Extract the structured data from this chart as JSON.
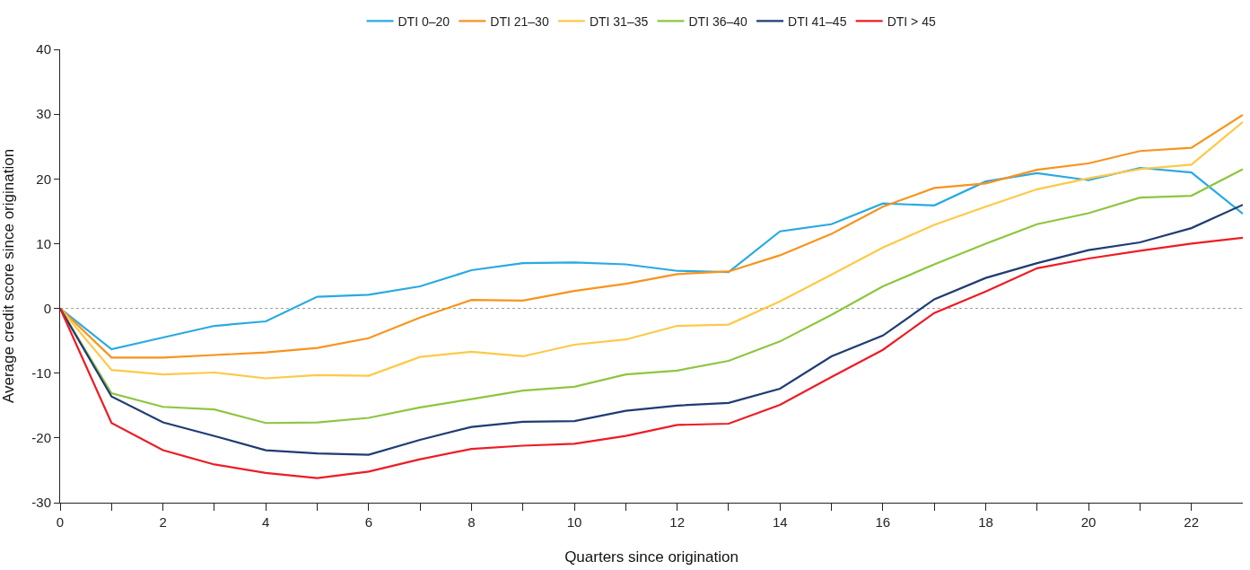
{
  "chart_data": {
    "type": "line",
    "xlabel": "Quarters since origination",
    "ylabel": "Average credit score since origination",
    "x": [
      0,
      1,
      2,
      3,
      4,
      5,
      6,
      7,
      8,
      9,
      10,
      11,
      12,
      13,
      14,
      15,
      16,
      17,
      18,
      19,
      20,
      21,
      22,
      23
    ],
    "series": [
      {
        "name": "DTI 0–20",
        "color": "#29aae1",
        "values": [
          0,
          -6.3,
          -4.5,
          -2.7,
          -2,
          1.8,
          2.1,
          3.4,
          5.9,
          7,
          7.1,
          6.8,
          5.8,
          5.6,
          11.9,
          13,
          16.2,
          15.9,
          19.6,
          20.9,
          19.8,
          21.7,
          21,
          14.6
        ]
      },
      {
        "name": "DTI 21–30",
        "color": "#f7941d",
        "values": [
          0,
          -7.6,
          -7.6,
          -7.2,
          -6.8,
          -6.1,
          -4.6,
          -1.4,
          1.3,
          1.2,
          2.7,
          3.8,
          5.3,
          5.7,
          8.2,
          11.5,
          15.7,
          18.6,
          19.3,
          21.4,
          22.4,
          24.3,
          24.8,
          29.9
        ]
      },
      {
        "name": "DTI 31–35",
        "color": "#fdc948",
        "values": [
          0,
          -9.5,
          -10.2,
          -9.9,
          -10.8,
          -10.3,
          -10.4,
          -7.5,
          -6.7,
          -7.4,
          -5.6,
          -4.8,
          -2.7,
          -2.5,
          1.1,
          5.2,
          9.4,
          12.9,
          15.7,
          18.4,
          20.1,
          21.5,
          22.2,
          28.8
        ]
      },
      {
        "name": "DTI 36–40",
        "color": "#8dc63f",
        "values": [
          0,
          -13.1,
          -15.2,
          -15.6,
          -17.7,
          -17.6,
          -16.9,
          -15.3,
          -14,
          -12.7,
          -12.1,
          -10.2,
          -9.6,
          -8.1,
          -5.1,
          -1,
          3.4,
          6.8,
          10,
          13,
          14.7,
          17.1,
          17.4,
          21.5
        ]
      },
      {
        "name": "DTI 41–45",
        "color": "#1f3c73",
        "values": [
          0,
          -13.6,
          -17.6,
          -19.7,
          -21.9,
          -22.4,
          -22.6,
          -20.3,
          -18.3,
          -17.5,
          -17.4,
          -15.8,
          -15,
          -14.6,
          -12.4,
          -7.4,
          -4.2,
          1.4,
          4.7,
          7,
          9,
          10.2,
          12.4,
          16
        ]
      },
      {
        "name": "DTI > 45",
        "color": "#ed1c24",
        "values": [
          0,
          -17.7,
          -21.9,
          -24.1,
          -25.4,
          -26.2,
          -25.2,
          -23.3,
          -21.7,
          -21.2,
          -20.9,
          -19.7,
          -18,
          -17.8,
          -14.9,
          -10.6,
          -6.4,
          -0.7,
          2.6,
          6.2,
          7.7,
          8.9,
          10,
          10.9
        ]
      }
    ],
    "xlim": [
      0,
      23
    ],
    "xticks": [
      0,
      {
        "value": 1,
        "label": null
      },
      2,
      {
        "value": 3,
        "label": null
      },
      4,
      {
        "value": 5,
        "label": null
      },
      6,
      {
        "value": 7,
        "label": null
      },
      8,
      {
        "value": 9,
        "label": null
      },
      10,
      {
        "value": 11,
        "label": null
      },
      12,
      {
        "value": 13,
        "label": null
      },
      14,
      {
        "value": 15,
        "label": null
      },
      16,
      {
        "value": 17,
        "label": null
      },
      18,
      {
        "value": 19,
        "label": null
      },
      20,
      {
        "value": 21,
        "label": null
      },
      22
    ],
    "ylim": [
      -30,
      40
    ],
    "yticks": [
      -30,
      -20,
      -10,
      0,
      10,
      20,
      30,
      40
    ],
    "ref_lines": [
      {
        "axis": "y",
        "value": 0,
        "color": "#999999",
        "line_style": "dotted"
      }
    ],
    "grid": false,
    "legend": "top",
    "marker": "none",
    "line_style": "solid"
  }
}
